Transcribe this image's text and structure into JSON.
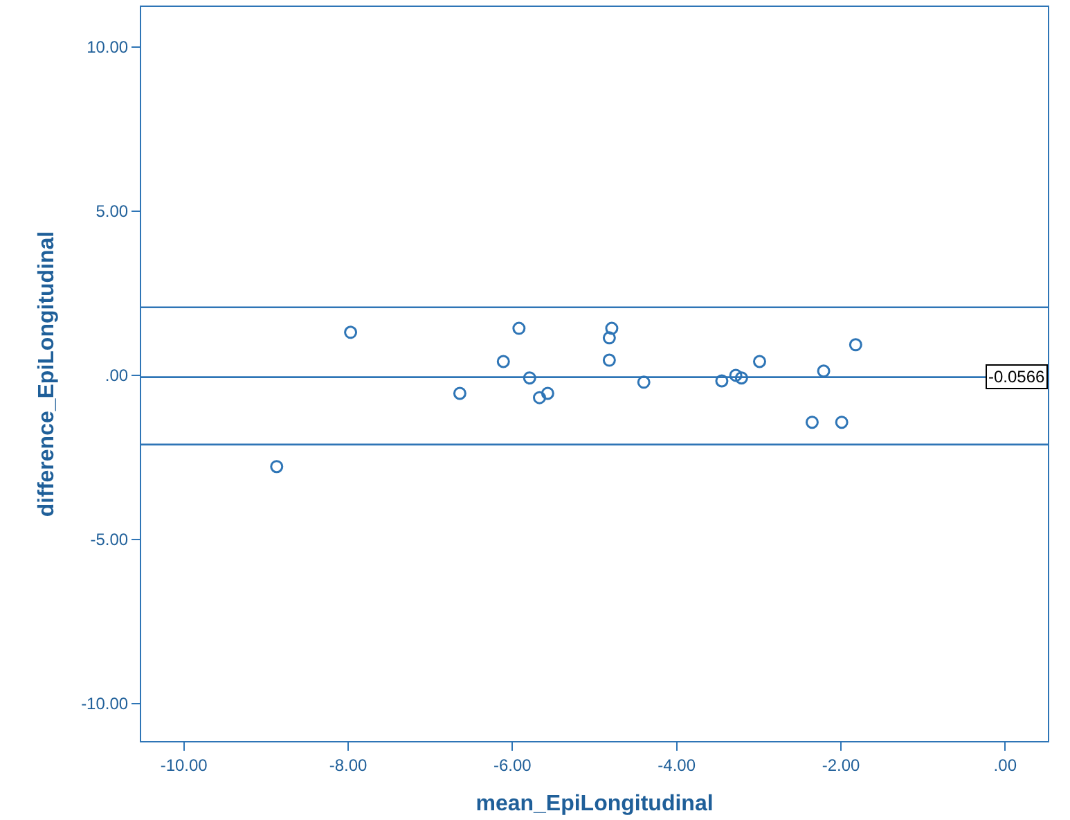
{
  "chart_data": {
    "type": "scatter",
    "xlabel": "mean_EpiLongitudinal",
    "ylabel": "difference_EpiLongitudinal",
    "x": [
      -8.87,
      -7.97,
      -6.64,
      -6.11,
      -5.92,
      -5.79,
      -5.67,
      -5.57,
      -4.82,
      -4.79,
      -4.82,
      -4.4,
      -3.45,
      -3.28,
      -3.21,
      -2.99,
      -2.35,
      -2.21,
      -1.99,
      -1.82
    ],
    "series": [
      {
        "color": "#2e75b6",
        "values": [
          -2.78,
          1.31,
          -0.55,
          0.42,
          1.43,
          -0.08,
          -0.68,
          -0.55,
          1.14,
          1.43,
          0.46,
          -0.21,
          -0.17,
          0.0,
          -0.08,
          0.42,
          -1.43,
          0.13,
          -1.43,
          0.93
        ]
      }
    ],
    "marker": "circle",
    "xlim": [
      -10.52,
      0.52
    ],
    "ylim": [
      -11.14,
      11.22
    ],
    "xticks": [
      {
        "value": -10,
        "label": "-10.00"
      },
      {
        "value": -8,
        "label": "-8.00"
      },
      {
        "value": -6,
        "label": "-6.00"
      },
      {
        "value": -4,
        "label": "-4.00"
      },
      {
        "value": -2,
        "label": "-2.00"
      },
      {
        "value": 0,
        "label": ".00"
      }
    ],
    "yticks": [
      {
        "value": -10,
        "label": "-10.00"
      },
      {
        "value": -5,
        "label": "-5.00"
      },
      {
        "value": 0,
        "label": ".00"
      },
      {
        "value": 5,
        "label": "5.00"
      },
      {
        "value": 10,
        "label": "10.00"
      }
    ],
    "ref_lines": [
      {
        "axis": "y",
        "value": 2.07,
        "color": "#2e75b6"
      },
      {
        "axis": "y",
        "value": -0.0566,
        "label": "-0.0566",
        "color": "#2e75b6"
      },
      {
        "axis": "y",
        "value": -2.11,
        "color": "#2e75b6"
      }
    ]
  }
}
